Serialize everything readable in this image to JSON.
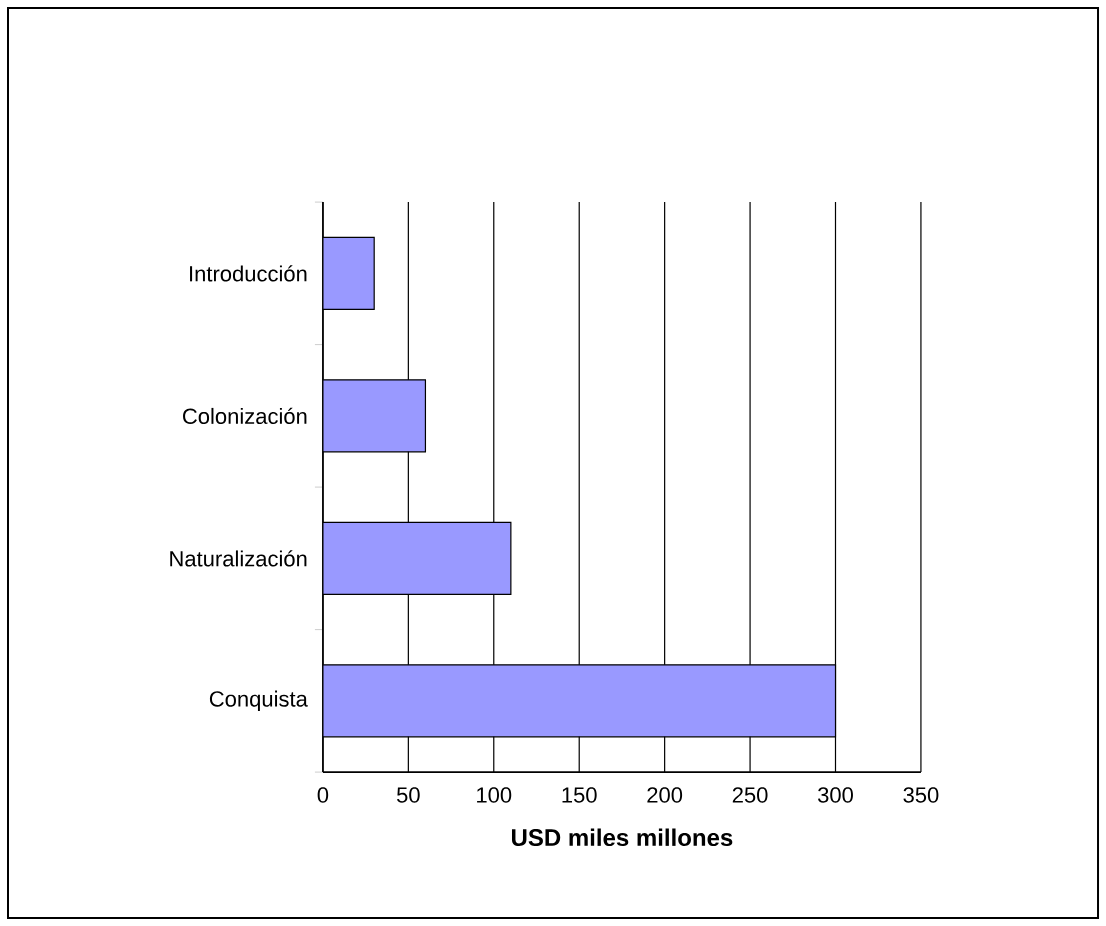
{
  "chart_data": {
    "type": "bar",
    "orientation": "horizontal",
    "xlabel": "USD miles millones",
    "categories": [
      "Introducción",
      "Colonización",
      "Naturalización",
      "Conquista"
    ],
    "values": [
      30,
      60,
      110,
      300
    ],
    "color": "#9999ff",
    "xlim": [
      0,
      350
    ],
    "xticks": [
      0,
      50,
      100,
      150,
      200,
      250,
      300,
      350
    ],
    "grid": "x"
  }
}
